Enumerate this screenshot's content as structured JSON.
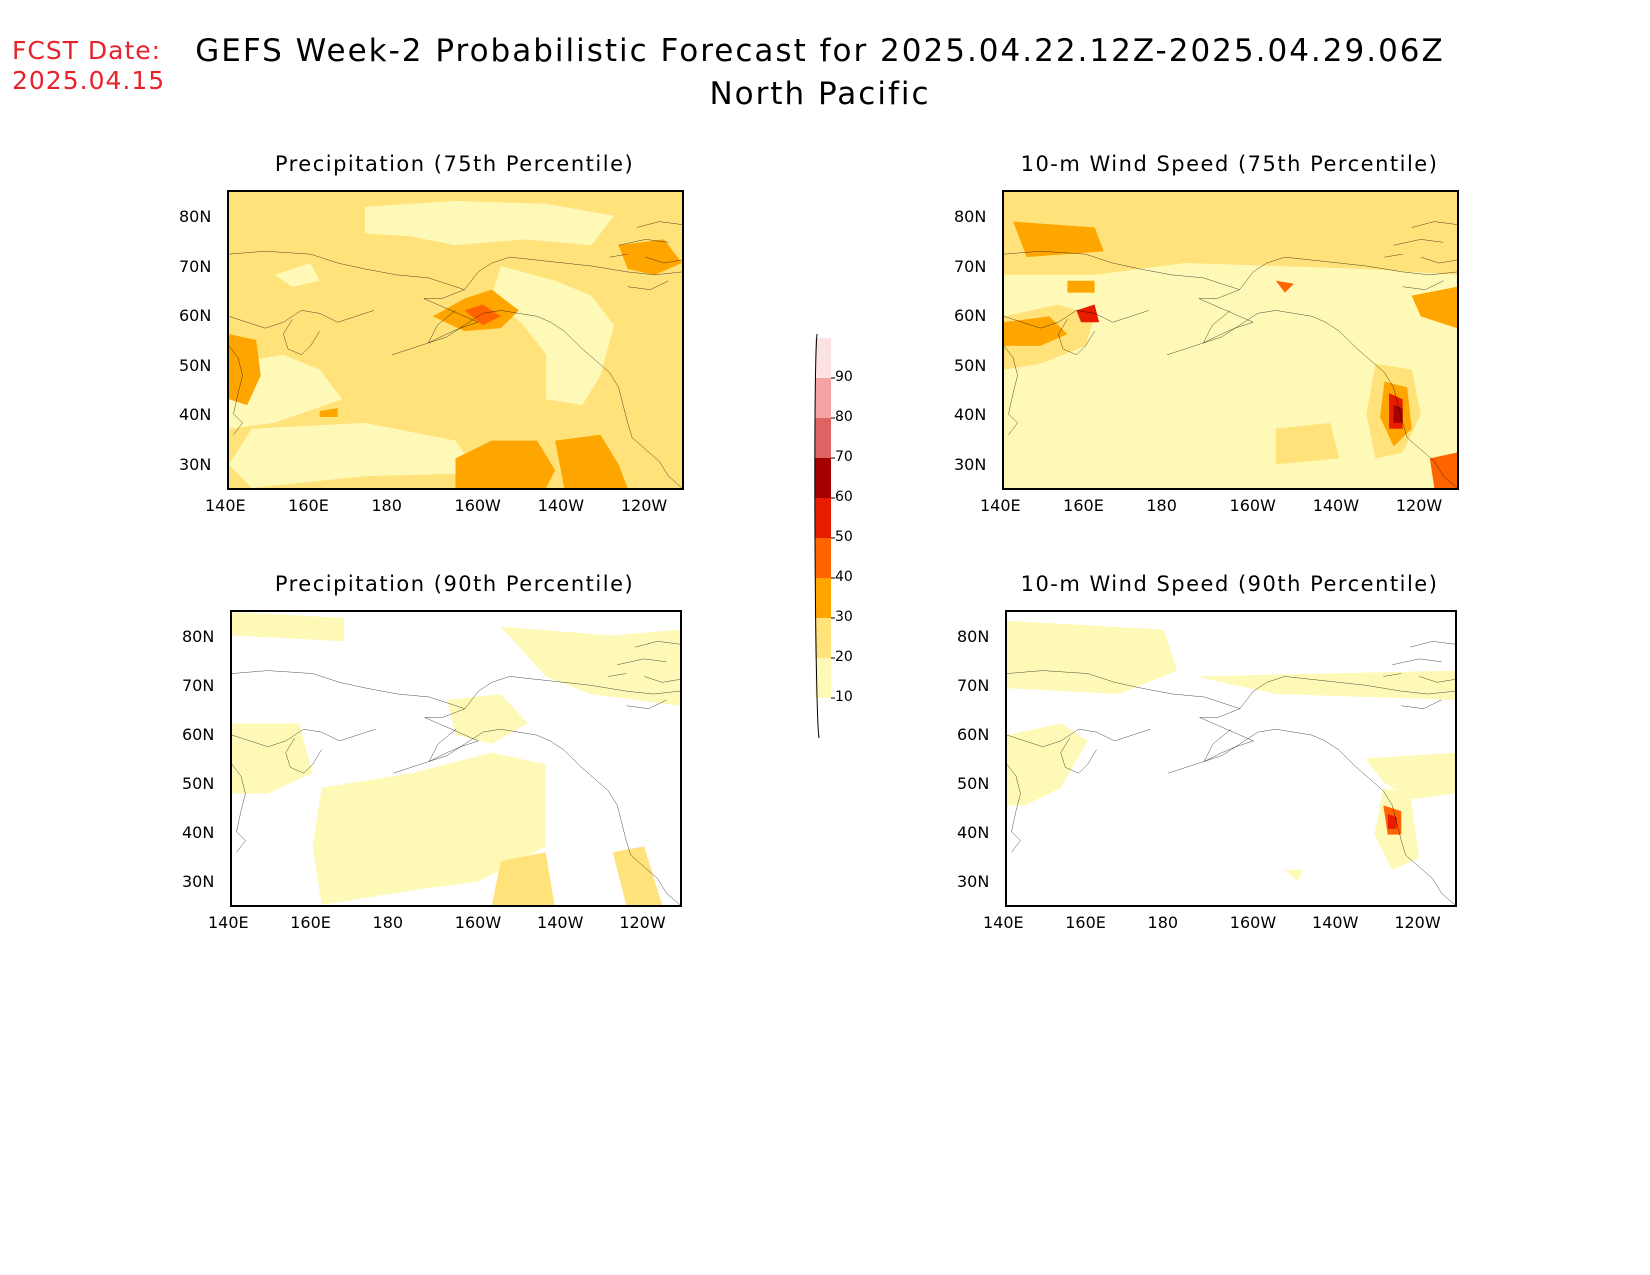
{
  "header": {
    "fcst_label": "FCST Date:",
    "fcst_date": "2025.04.15",
    "title": "GEFS Week-2 Probabilistic Forecast for 2025.04.22.12Z-2025.04.29.06Z",
    "subtitle": "North Pacific"
  },
  "axes": {
    "lat_labels": [
      "80N",
      "70N",
      "60N",
      "50N",
      "40N",
      "30N"
    ],
    "lon_labels": [
      "140E",
      "160E",
      "180",
      "160W",
      "140W",
      "120W"
    ]
  },
  "colorbar": {
    "levels": [
      "10",
      "20",
      "30",
      "40",
      "50",
      "60",
      "70",
      "80",
      "90"
    ],
    "colors": [
      "#fff9b8",
      "#ffe27a",
      "#ffa500",
      "#ff6400",
      "#e81d00",
      "#a50000",
      "#de6464",
      "#f5a3a3",
      "#fde2e2"
    ]
  },
  "panels": [
    {
      "id": "precip-75",
      "title": "Precipitation (75th Percentile)"
    },
    {
      "id": "wind-75",
      "title": "10-m Wind Speed (75th Percentile)"
    },
    {
      "id": "precip-90",
      "title": "Precipitation (90th Percentile)"
    },
    {
      "id": "wind-90",
      "title": "10-m Wind Speed (90th Percentile)"
    }
  ]
}
